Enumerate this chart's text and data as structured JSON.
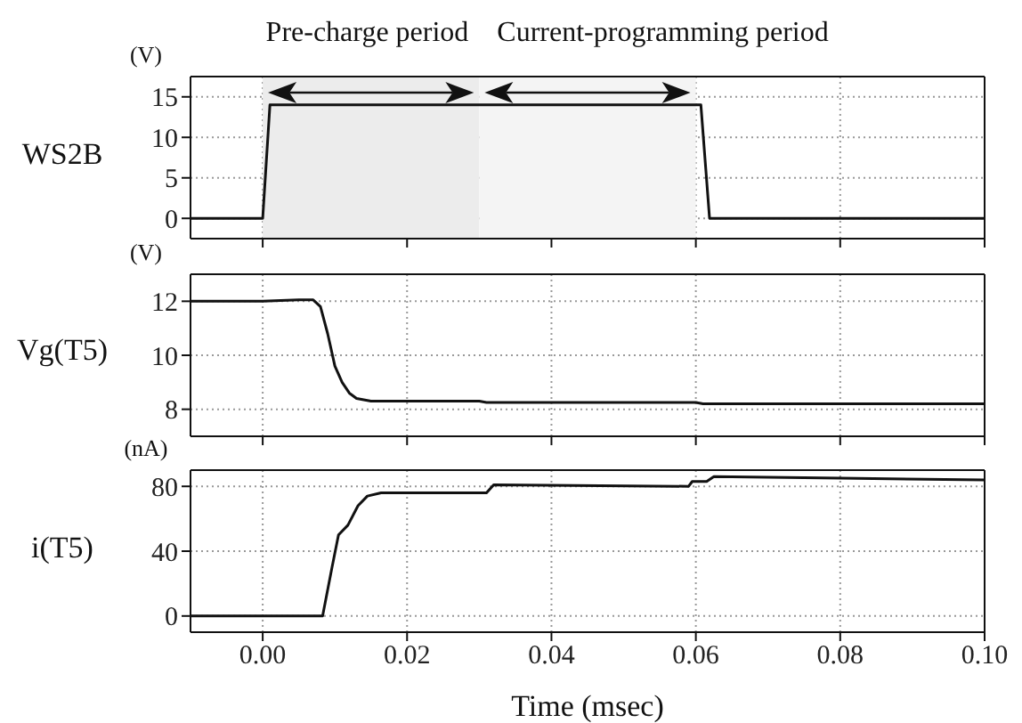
{
  "chart_data": [
    {
      "type": "line",
      "ylabel": "WS2B",
      "annotations": [
        "(V)"
      ],
      "x": [
        -0.01,
        0,
        0.001,
        0.0607,
        0.0619,
        0.1
      ],
      "values": [
        0,
        0,
        14,
        14,
        0,
        0
      ],
      "color": "#111111",
      "xlim": [
        -0.01,
        0.1
      ],
      "xticks": [
        0,
        0.02,
        0.04,
        0.06,
        0.08,
        0.1
      ],
      "ylim": [
        -2.5,
        17.5
      ],
      "yticks": [
        0,
        5,
        10,
        15
      ],
      "grid": true,
      "tick_labels": "y",
      "bands": [
        {
          "axis": "x",
          "from": 0,
          "to": 0.03,
          "label": "Pre-charge period"
        },
        {
          "axis": "x",
          "from": 0.03,
          "to": 0.06,
          "label": "Current-programming period"
        }
      ]
    },
    {
      "type": "line",
      "ylabel": "Vg(T5)",
      "annotations": [
        "(V)"
      ],
      "x": [
        -0.01,
        0,
        0.005,
        0.007,
        0.008,
        0.009,
        0.01,
        0.011,
        0.012,
        0.013,
        0.015,
        0.03,
        0.031,
        0.06,
        0.061,
        0.1
      ],
      "values": [
        12,
        12,
        12.05,
        12.05,
        11.8,
        10.8,
        9.6,
        9.0,
        8.6,
        8.4,
        8.3,
        8.3,
        8.25,
        8.25,
        8.2,
        8.2
      ],
      "color": "#111111",
      "xlim": [
        -0.01,
        0.1
      ],
      "xticks": [
        0,
        0.02,
        0.04,
        0.06,
        0.08,
        0.1
      ],
      "ylim": [
        7,
        13
      ],
      "yticks": [
        8,
        10,
        12
      ],
      "grid": true,
      "tick_labels": "y"
    },
    {
      "type": "line",
      "ylabel": "i(T5)",
      "xlabel": "Time (msec)",
      "annotations": [
        "(nA)"
      ],
      "x": [
        -0.01,
        0,
        0.0083,
        0.0096,
        0.0105,
        0.0118,
        0.0132,
        0.0145,
        0.0164,
        0.031,
        0.032,
        0.059,
        0.0595,
        0.0615,
        0.0625,
        0.08,
        0.1
      ],
      "values": [
        0,
        0,
        0,
        30,
        50,
        56,
        68,
        74,
        76,
        76,
        81,
        80,
        83,
        83,
        86,
        85,
        84
      ],
      "color": "#111111",
      "xlim": [
        -0.01,
        0.1
      ],
      "xticks": [
        {
          "value": 0,
          "label": "0.00"
        },
        {
          "value": 0.02,
          "label": "0.02"
        },
        {
          "value": 0.04,
          "label": "0.04"
        },
        {
          "value": 0.06,
          "label": "0.06"
        },
        {
          "value": 0.08,
          "label": "0.08"
        },
        {
          "value": 0.1,
          "label": "0.10"
        }
      ],
      "ylim": [
        -10,
        90
      ],
      "yticks": [
        0,
        40,
        80
      ],
      "grid": true
    }
  ]
}
